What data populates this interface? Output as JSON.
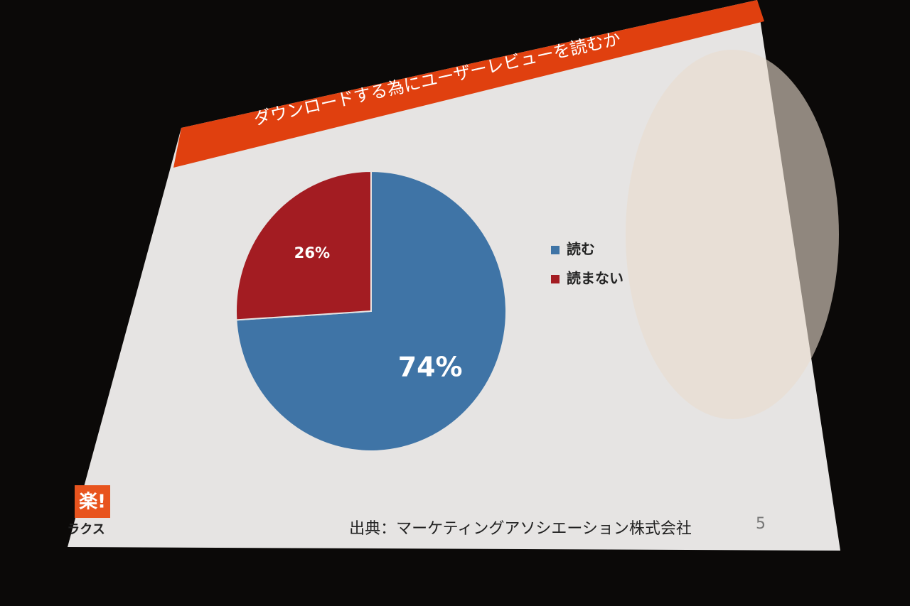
{
  "chart_data": {
    "type": "pie",
    "title": "ダウンロードする為にユーザーレビューを読むか",
    "categories": [
      "読む",
      "読まない"
    ],
    "values": [
      74,
      26
    ],
    "value_labels": [
      "74%",
      "26%"
    ],
    "colors": [
      "#3f74a6",
      "#a31c22"
    ],
    "legend": "right"
  },
  "footer": {
    "source": "出典：マーケティングアソシエーション株式会社",
    "page_number": "5"
  },
  "logo": {
    "mark": "楽!",
    "name": "ラクス"
  }
}
